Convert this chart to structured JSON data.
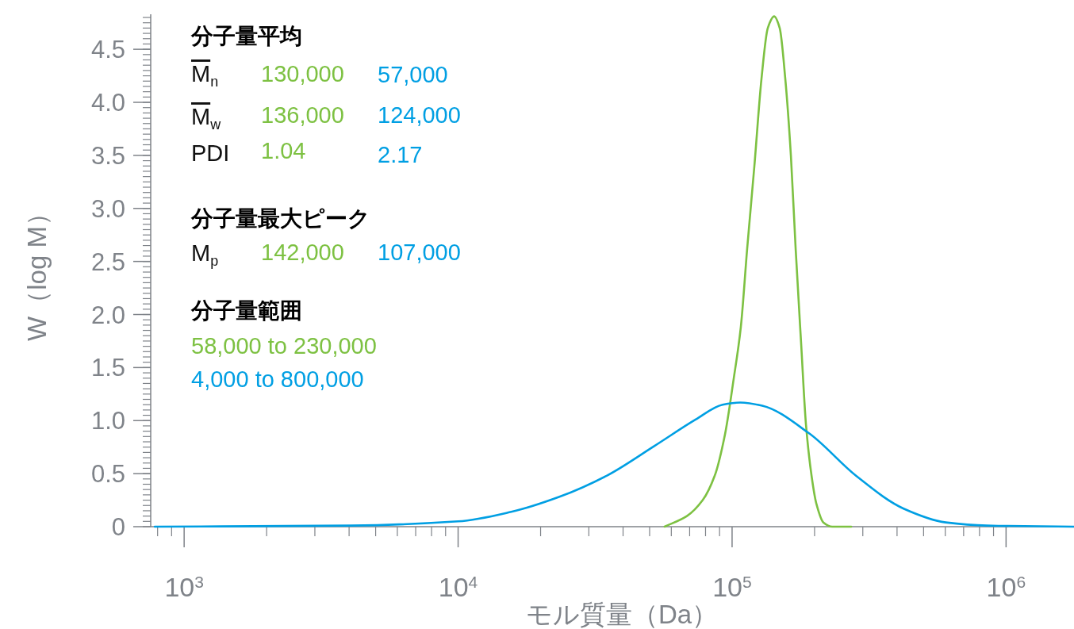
{
  "chart_data": {
    "type": "line",
    "xlabel": "モル質量（Da）",
    "ylabel": "W（log M）",
    "log": "x",
    "xlim": [
      755,
      1770000
    ],
    "ylim": [
      0,
      4.83
    ],
    "xticks": [
      {
        "value": 1000,
        "label": "10$^{3}$"
      },
      {
        "value": 10000,
        "label": "10$^{4}$"
      },
      {
        "value": 100000,
        "label": "10$^{5}$"
      },
      {
        "value": 1000000,
        "label": "10$^{6}$"
      }
    ],
    "yticks": [
      0,
      0.5,
      {
        "value": 1,
        "label": "1.0"
      },
      1.5,
      {
        "value": 2,
        "label": "2.0"
      },
      2.5,
      {
        "value": 3,
        "label": "3.0"
      },
      3.5,
      {
        "value": 4,
        "label": "4.0"
      },
      4.5
    ],
    "grid": false,
    "series": [
      {
        "color": "#7dc142",
        "x": [
          56700,
          68400,
          78100,
          86400,
          94200,
          101300,
          107600,
          113500,
          120600,
          128000,
          135000,
          142400,
          149200,
          156400,
          163900,
          170600,
          178800,
          186100,
          195000,
          202900,
          215400,
          231900,
          272100
        ],
        "values": [
          0,
          0.1,
          0.25,
          0.48,
          0.87,
          1.39,
          1.88,
          2.62,
          3.4,
          4.22,
          4.7,
          4.81,
          4.7,
          4.22,
          3.5,
          2.62,
          1.71,
          0.96,
          0.48,
          0.22,
          0.04,
          0,
          0
        ]
      },
      {
        "color": "#009fe3",
        "x": [
          781,
          4060,
          10000,
          15630,
          23330,
          34830,
          52000,
          73600,
          92300,
          107000,
          128900,
          191000,
          283300,
          422700,
          602400,
          851500,
          1770000
        ],
        "values": [
          0,
          0.01,
          0.05,
          0.14,
          0.28,
          0.48,
          0.76,
          1.01,
          1.15,
          1.17,
          1.14,
          0.88,
          0.48,
          0.17,
          0.04,
          0.01,
          0
        ]
      }
    ],
    "annotations": [
      "分子量平均",
      "M$_{n}$",
      "130,000",
      "57,000",
      "M$_{w}$",
      "136,000",
      "124,000",
      "PDI",
      "1.04",
      "2.17",
      "分子量最大ピーク",
      "M$_{p}$",
      "142,000",
      "107,000",
      "分子量範囲",
      "58,000 to 230,000",
      "4,000 to 800,000"
    ]
  }
}
